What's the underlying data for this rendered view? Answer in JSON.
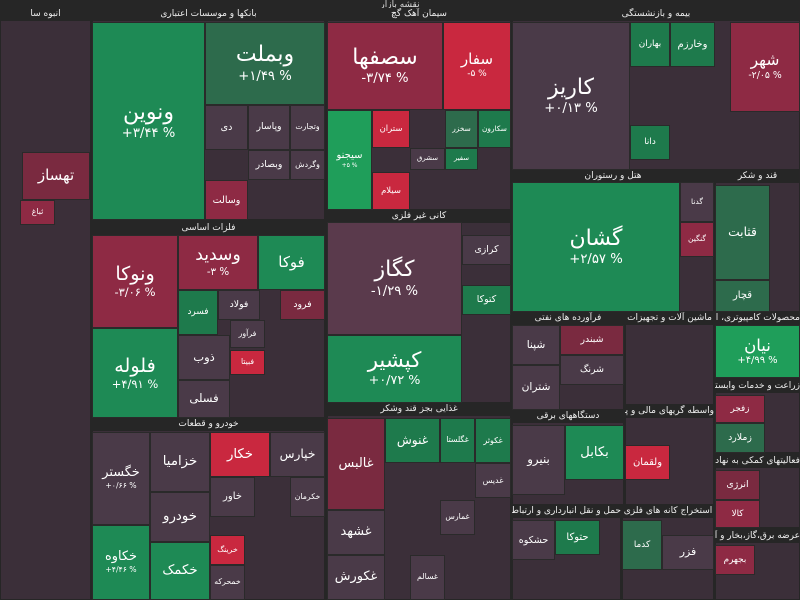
{
  "title": "نقشه بازار",
  "sectors": [
    {
      "name": "انبوه سا",
      "tiles": [
        {
          "name": "تهساز"
        },
        {
          "name": "ثباغ"
        }
      ]
    },
    {
      "name": "بانکها و موسسات اعتباری",
      "tiles": [
        {
          "name": "ونوین",
          "change": "+۳/۴۴ %"
        },
        {
          "name": "وبملت",
          "change": "+۱/۴۹ %"
        },
        {
          "name": "وتجارت"
        },
        {
          "name": "وپاسار"
        },
        {
          "name": "دی"
        },
        {
          "name": "وگردش"
        },
        {
          "name": "وبصادر"
        },
        {
          "name": "وسالت"
        }
      ]
    },
    {
      "name": "سیمان آهک گچ",
      "tiles": [
        {
          "name": "سصفها",
          "change": "-۳/۷۴ %"
        },
        {
          "name": "سفار",
          "change": "-۵ %"
        },
        {
          "name": "سیجنو",
          "change": "+۵ %"
        },
        {
          "name": "ستران"
        },
        {
          "name": "سیلام"
        },
        {
          "name": "سکارون"
        },
        {
          "name": "سخزر"
        },
        {
          "name": "سفیر"
        },
        {
          "name": "سشرق"
        }
      ]
    },
    {
      "name": "بیمه و بازنشستگی",
      "tiles": [
        {
          "name": "کاریز",
          "change": "+۰/۱۳ %"
        },
        {
          "name": "بهاران"
        },
        {
          "name": "وخارزم"
        },
        {
          "name": "دانا"
        },
        {
          "name": "شهر",
          "change": "-۲/۰۵ %"
        }
      ]
    },
    {
      "name": "هتل و رستوران",
      "tiles": [
        {
          "name": "گشان",
          "change": "+۲/۵۷ %"
        },
        {
          "name": "گدنا"
        },
        {
          "name": "گنگین"
        }
      ]
    },
    {
      "name": "قند و شکر",
      "tiles": [
        {
          "name": "قثابت"
        },
        {
          "name": "قچار"
        }
      ]
    },
    {
      "name": "کانی غیر فلزی",
      "tiles": [
        {
          "name": "کگاز",
          "change": "-۱/۲۹ %"
        },
        {
          "name": "کپشیر",
          "change": "+۰/۷۲ %"
        },
        {
          "name": "کرازی"
        },
        {
          "name": "کتوکا"
        }
      ]
    },
    {
      "name": "فلزات اساسی",
      "tiles": [
        {
          "name": "ونوکا",
          "change": "-۳/۰۶ %"
        },
        {
          "name": "فلوله",
          "change": "+۴/۹۱ %"
        },
        {
          "name": "وسدید",
          "change": "-۳ %"
        },
        {
          "name": "فوکا"
        },
        {
          "name": "فسرد"
        },
        {
          "name": "فولاد"
        },
        {
          "name": "فرود"
        },
        {
          "name": "ذوب"
        },
        {
          "name": "فرآور"
        },
        {
          "name": "فبیتا"
        },
        {
          "name": "فسلی"
        }
      ]
    },
    {
      "name": "خودرو و قطعات",
      "tiles": [
        {
          "name": "خگستر",
          "change": "+۰/۶۶ %"
        },
        {
          "name": "خکاوه",
          "change": "+۴/۴۶ %"
        },
        {
          "name": "خزامیا"
        },
        {
          "name": "خکار"
        },
        {
          "name": "خپارس"
        },
        {
          "name": "خاور"
        },
        {
          "name": "خکرمان"
        },
        {
          "name": "خودرو"
        },
        {
          "name": "خکمک"
        },
        {
          "name": "خرینگ"
        },
        {
          "name": "خمحرکه"
        }
      ]
    },
    {
      "name": "غذایی بجز قند وشکر",
      "tiles": [
        {
          "name": "غالبس"
        },
        {
          "name": "غشهد"
        },
        {
          "name": "غکورش"
        },
        {
          "name": "غگلستا"
        },
        {
          "name": "غکوثر"
        },
        {
          "name": "غنوش"
        },
        {
          "name": "غدیس"
        },
        {
          "name": "غمارس"
        },
        {
          "name": "غسالم"
        }
      ]
    },
    {
      "name": "فرآورده های نفتی",
      "tiles": [
        {
          "name": "شبندر"
        },
        {
          "name": "شپنا"
        },
        {
          "name": "شرنگ"
        },
        {
          "name": "شتران"
        }
      ]
    },
    {
      "name": "ماشین آلات و تجهیزات",
      "tiles": []
    },
    {
      "name": "محصولات کامپیوتری، الکترونیکی و",
      "tiles": [
        {
          "name": "نیان",
          "change": "+۴/۹۹ %"
        }
      ]
    },
    {
      "name": "زراعت و خدمات وابسته",
      "tiles": [
        {
          "name": "زفجر"
        },
        {
          "name": "زملارد"
        }
      ]
    },
    {
      "name": "واسطه گریهای مالی و پولی",
      "tiles": [
        {
          "name": "ولقمان"
        }
      ]
    },
    {
      "name": "دستگاههای برقی",
      "tiles": [
        {
          "name": "بکابل"
        },
        {
          "name": "بنیرو"
        }
      ]
    },
    {
      "name": "فعالیتهای کمکی به نهاد",
      "tiles": [
        {
          "name": "انرژی"
        },
        {
          "name": "کالا"
        }
      ]
    },
    {
      "name": "حمل و نقل انبارداری و ارتباطات",
      "tiles": [
        {
          "name": "حتوکا"
        },
        {
          "name": "حشکوه"
        }
      ]
    },
    {
      "name": "استخراج کانه های فلزی",
      "tiles": [
        {
          "name": "کدما"
        },
        {
          "name": "فزر"
        }
      ]
    },
    {
      "name": "عرضه برق،گاز،بخار و آب",
      "tiles": [
        {
          "name": "بجهرم"
        }
      ]
    }
  ]
}
